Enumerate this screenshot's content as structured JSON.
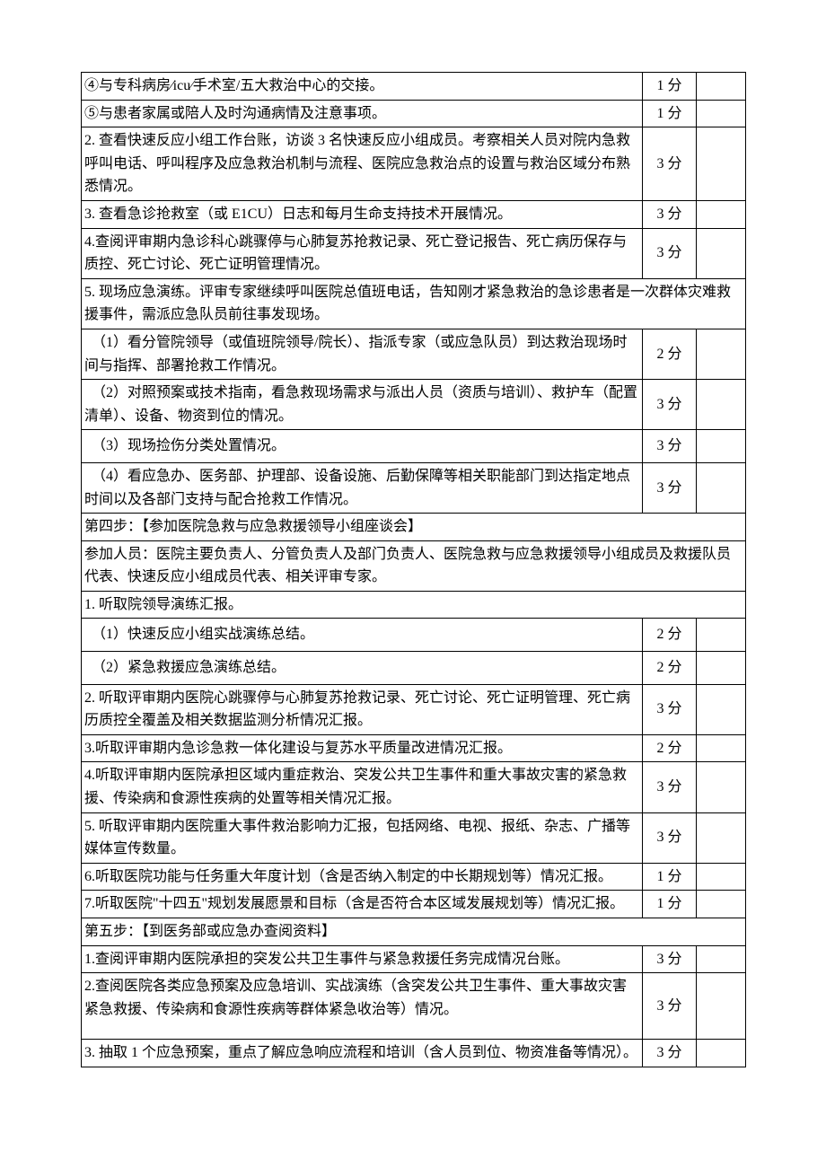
{
  "rows": [
    {
      "type": "row3",
      "c1": "④与专科病房⁄icu⁄手术室/五大救治中心的交接。",
      "c2": "1 分",
      "c3": ""
    },
    {
      "type": "row3",
      "c1": "⑤与患者家属或陪人及时沟通病情及注意事项。",
      "c2": "1 分",
      "c3": ""
    },
    {
      "type": "row3",
      "c1": "2. 查看快速反应小组工作台账，访谈 3 名快速反应小组成员。考察相关人员对院内急救呼叫电话、呼叫程序及应急救治机制与流程、医院应急救治点的设置与救治区域分布熟悉情况。",
      "c2": "3 分",
      "c3": ""
    },
    {
      "type": "row3",
      "c1": "3. 查看急诊抢救室（或 E1CU）日志和每月生命支持技术开展情况。",
      "c2": "3 分",
      "c3": ""
    },
    {
      "type": "row3",
      "c1": "4.查阅评审期内急诊科心跳骤停与心肺复苏抢救记录、死亡登记报告、死亡病历保存与质控、死亡讨论、死亡证明管理情况。",
      "c2": "3 分",
      "c3": ""
    },
    {
      "type": "span",
      "c1": "5. 现场应急演练。评审专家继续呼叫医院总值班电话，告知刚才紧急救治的急诊患者是一次群体灾难救援事件，需派应急队员前往事发现场。"
    },
    {
      "type": "row3",
      "c1": "　（1）看分管院领导（或值班院领导/院长）、指派专家（或应急队员）到达救治现场时间与指挥、部署抢救工作情况。",
      "c2": "2 分",
      "c3": ""
    },
    {
      "type": "row3",
      "c1": "　（2）对照预案或技术指南，看急救现场需求与派出人员（资质与培训）、救护车（配置清单）、设备、物资到位的情况。",
      "c2": "3 分",
      "c3": ""
    },
    {
      "type": "row3",
      "c1": "　（3）现场捡伤分类处置情况。",
      "c2": "3 分",
      "c3": "",
      "pad": true
    },
    {
      "type": "row3",
      "c1": "　（4）看应急办、医务部、护理部、设备设施、后勤保障等相关职能部门到达指定地点时间以及各部门支持与配合抢救工作情况。",
      "c2": "3 分",
      "c3": ""
    },
    {
      "type": "span",
      "c1": "第四步：【参加医院急救与应急救援领导小组座谈会】"
    },
    {
      "type": "span",
      "c1": "参加人员：医院主要负责人、分管负责人及部门负责人、医院急救与应急救援领导小组成员及救援队员代表、快速反应小组成员代表、相关评审专家。"
    },
    {
      "type": "span",
      "c1": "1. 听取院领导演练汇报。"
    },
    {
      "type": "row3",
      "c1": "　（1）快速反应小组实战演练总结。",
      "c2": "2 分",
      "c3": "",
      "pad": true
    },
    {
      "type": "row3",
      "c1": "　（2）紧急救援应急演练总结。",
      "c2": "2 分",
      "c3": "",
      "pad": true
    },
    {
      "type": "row3",
      "c1": "2. 听取评审期内医院心跳骤停与心肺复苏抢救记录、死亡讨论、死亡证明管理、死亡病历质控全覆盖及相关数据监测分析情况汇报。",
      "c2": "3 分",
      "c3": ""
    },
    {
      "type": "row3",
      "c1": "3.听取评审期内急诊急救一体化建设与复苏水平质量改进情况汇报。",
      "c2": "2 分",
      "c3": ""
    },
    {
      "type": "row3",
      "c1": "4.听取评审期内医院承担区域内重症救治、突发公共卫生事件和重大事故灾害的紧急救援、传染病和食源性疾病的处置等相关情况汇报。",
      "c2": "3 分",
      "c3": ""
    },
    {
      "type": "row3",
      "c1": "5. 听取评审期内医院重大事件救治影响力汇报，包括网络、电视、报纸、杂志、广播等媒体宣传数量。",
      "c2": "3 分",
      "c3": ""
    },
    {
      "type": "row3",
      "c1": "6.听取医院功能与任务重大年度计划（含是否纳入制定的中长期规划等）情况汇报。",
      "c2": "1 分",
      "c3": ""
    },
    {
      "type": "row3",
      "c1": "7.听取医院\"十四五\"规划发展愿景和目标（含是否符合本区域发展规划等）情况汇报。",
      "c2": "1 分",
      "c3": ""
    },
    {
      "type": "span",
      "c1": "第五步：【到医务部或应急办查阅资料】"
    },
    {
      "type": "row3",
      "c1": "1.查阅评审期内医院承担的突发公共卫生事件与紧急救援任务完成情况台账。",
      "c2": "3 分",
      "c3": ""
    },
    {
      "type": "row3",
      "c1": "2.查阅医院各类应急预案及应急培训、实战演练（含突发公共卫生事件、重大事故灾害紧急救援、传染病和食源性疾病等群体紧急收治等）情况。",
      "c2": "3 分",
      "c3": "",
      "tall": true
    },
    {
      "type": "row3",
      "c1": "3. 抽取 1 个应急预案，重点了解应急响应流程和培训（含人员到位、物资准备等情况）。",
      "c2": "3 分",
      "c3": ""
    }
  ]
}
